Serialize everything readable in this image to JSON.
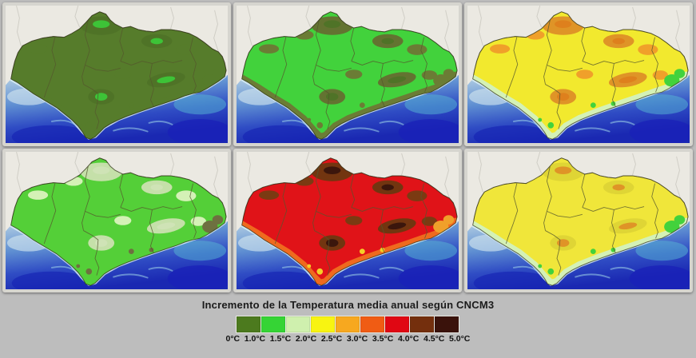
{
  "page": {
    "background_color": "#bdbdbd"
  },
  "figure": {
    "type": "choropleth-map-grid",
    "rows": 2,
    "cols": 3,
    "description": "Six small-multiple maps of the same southern-Spain region (Andalusia outline with province boundaries), each colored by annual mean temperature increase class; sea shown in blue gradient, land outside region in pale grey",
    "map_colors": {
      "outside_land": "#ebe9e2",
      "sea_shallow": "#b8d2e4",
      "sea_deep": "#1a28b2",
      "coast_glow": "#d8eef4",
      "region_border": "#3c3c1e",
      "province_border": "#55572e",
      "panel_frame": "#d6d5cf"
    }
  },
  "panels": [
    {
      "id": "map-panel-1",
      "position": "top-left",
      "dominant_increase": "0-1.0°C",
      "layers": {
        "base": "#567c2b",
        "mountains": "#567c2b",
        "peaks": "#42d23c",
        "coast": "#567c2b",
        "se": "#567c2b",
        "spots": "#567c2b"
      }
    },
    {
      "id": "map-panel-2",
      "position": "top-middle",
      "dominant_increase": "1.0-1.5°C",
      "layers": {
        "base": "#42d23c",
        "mountains": "#6b7c35",
        "peaks": "#567c2b",
        "coast": "#6b7c35",
        "se": "#6b7c35",
        "spots": "#6b7c35"
      }
    },
    {
      "id": "map-panel-3",
      "position": "top-right",
      "dominant_increase": "2.0-2.5°C",
      "layers": {
        "base": "#f2e92e",
        "mountains": "#f0a02a",
        "peaks": "#ef8a20",
        "coast": "#d4f1b6",
        "se": "#42d23c",
        "spots": "#42d23c"
      }
    },
    {
      "id": "map-panel-4",
      "position": "bottom-left",
      "dominant_increase": "1.0-2.0°C",
      "layers": {
        "base": "#54cf38",
        "mountains": "#d4f1b6",
        "peaks": "#dff5c4",
        "coast": "#54cf38",
        "se": "#6e7040",
        "spots": "#6e7040"
      }
    },
    {
      "id": "map-panel-5",
      "position": "bottom-middle",
      "dominant_increase": "3.5-4.5°C",
      "layers": {
        "base": "#e01318",
        "mountains": "#7b3a12",
        "peaks": "#40180d",
        "coast": "#ef6a1e",
        "se": "#f0a02a",
        "spots": "#f5d028"
      }
    },
    {
      "id": "map-panel-6",
      "position": "bottom-right",
      "dominant_increase": "2.0°C",
      "layers": {
        "base": "#f0e63a",
        "mountains": "#f0e63a",
        "peaks": "#f0a02a",
        "coast": "#d4f1b6",
        "se": "#42d23c",
        "spots": "#42d23c"
      }
    }
  ],
  "legend": {
    "title": "Incremento de la Temperatura media anual según CNCM3",
    "tick_labels": [
      "0°C",
      "1.0°C",
      "1.5°C",
      "2.0°C",
      "2.5°C",
      "3.0°C",
      "3.5°C",
      "4.0°C",
      "4.5°C",
      "5.0°C"
    ],
    "swatches": [
      {
        "range": "0-1.0C",
        "color": "#4c7a1e"
      },
      {
        "range": "1.0-1.5C",
        "color": "#35d435"
      },
      {
        "range": "1.5-2.0C",
        "color": "#cff0ae"
      },
      {
        "range": "2.0-2.5C",
        "color": "#f8f411"
      },
      {
        "range": "2.5-3.0C",
        "color": "#f7a81f"
      },
      {
        "range": "3.0-3.5C",
        "color": "#f05c14"
      },
      {
        "range": "3.5-4.0C",
        "color": "#e00713"
      },
      {
        "range": "4.0-4.5C",
        "color": "#742f0d"
      },
      {
        "range": "4.5-5.0C",
        "color": "#3a120b"
      }
    ]
  }
}
